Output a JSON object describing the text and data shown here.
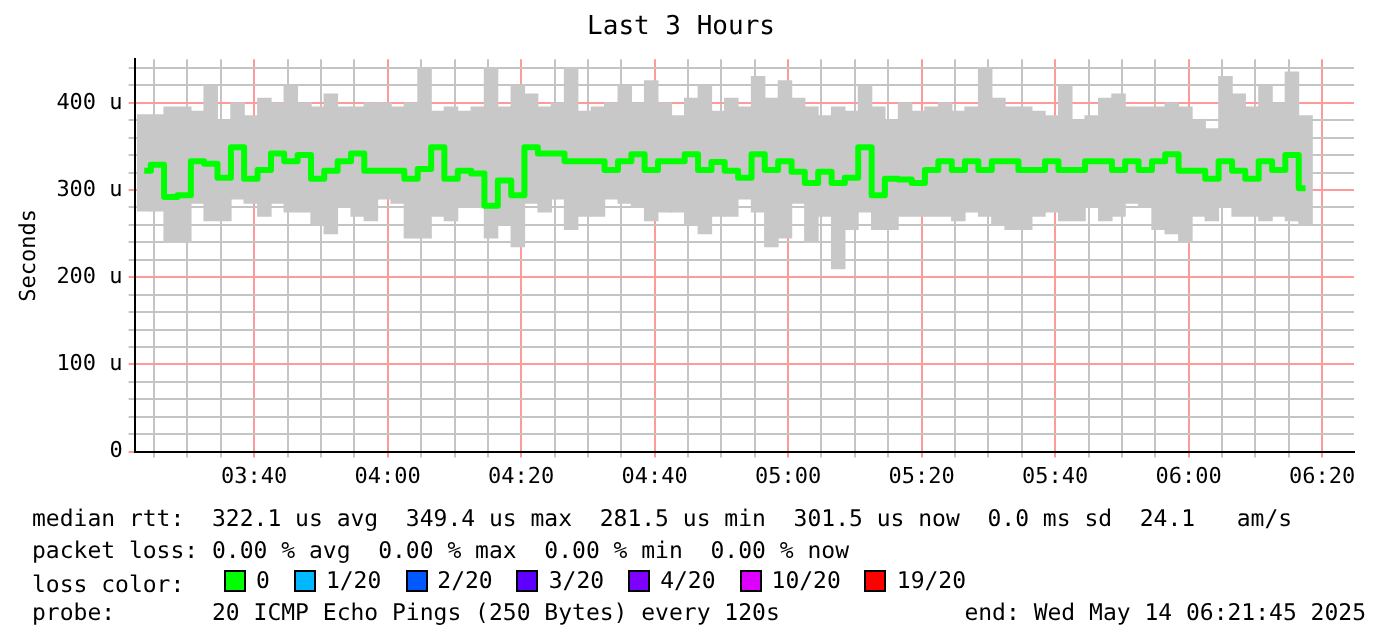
{
  "chart_data": {
    "type": "step",
    "title": "Last 3 Hours",
    "ylabel": "Seconds",
    "legend_title": "loss color:",
    "x": [
      3.392,
      3.425,
      3.458,
      3.492,
      3.525,
      3.558,
      3.592,
      3.625,
      3.658,
      3.692,
      3.725,
      3.758,
      3.792,
      3.825,
      3.858,
      3.892,
      3.925,
      3.958,
      3.992,
      4.025,
      4.058,
      4.092,
      4.125,
      4.158,
      4.192,
      4.225,
      4.258,
      4.292,
      4.325,
      4.358,
      4.392,
      4.425,
      4.458,
      4.492,
      4.525,
      4.558,
      4.592,
      4.625,
      4.658,
      4.692,
      4.725,
      4.758,
      4.792,
      4.825,
      4.858,
      4.892,
      4.925,
      4.958,
      4.992,
      5.025,
      5.058,
      5.092,
      5.125,
      5.158,
      5.192,
      5.225,
      5.258,
      5.292,
      5.325,
      5.358,
      5.392,
      5.425,
      5.458,
      5.492,
      5.525,
      5.558,
      5.592,
      5.625,
      5.658,
      5.692,
      5.725,
      5.758,
      5.792,
      5.825,
      5.858,
      5.892,
      5.925,
      5.958,
      5.992,
      6.025,
      6.058,
      6.092,
      6.125,
      6.158,
      6.192,
      6.225,
      6.258,
      6.292
    ],
    "series": [
      {
        "type": "bar",
        "color": "#c8c8c8",
        "base": [
          276,
          276,
          240,
          240,
          285,
          265,
          265,
          290,
          285,
          270,
          285,
          275,
          275,
          260,
          250,
          280,
          270,
          265,
          290,
          285,
          245,
          245,
          270,
          265,
          280,
          280,
          245,
          260,
          235,
          285,
          275,
          290,
          255,
          270,
          270,
          290,
          285,
          280,
          265,
          275,
          275,
          260,
          250,
          270,
          270,
          290,
          275,
          235,
          245,
          285,
          240,
          270,
          210,
          255,
          275,
          255,
          255,
          270,
          270,
          270,
          270,
          265,
          275,
          270,
          260,
          255,
          255,
          270,
          275,
          265,
          265,
          280,
          265,
          270,
          285,
          280,
          255,
          250,
          240,
          270,
          265,
          280,
          270,
          270,
          265,
          270,
          265,
          260
        ],
        "values": [
          110,
          110,
          155,
          155,
          105,
          155,
          115,
          110,
          100,
          135,
          115,
          145,
          125,
          135,
          160,
          115,
          125,
          135,
          110,
          110,
          155,
          195,
          120,
          130,
          110,
          115,
          195,
          135,
          185,
          125,
          120,
          110,
          185,
          120,
          125,
          110,
          135,
          120,
          160,
          125,
          110,
          145,
          170,
          120,
          135,
          105,
          155,
          170,
          180,
          120,
          155,
          115,
          185,
          135,
          145,
          140,
          125,
          130,
          120,
          125,
          130,
          125,
          120,
          170,
          145,
          140,
          140,
          120,
          110,
          155,
          115,
          105,
          140,
          140,
          110,
          115,
          140,
          150,
          155,
          110,
          105,
          150,
          140,
          125,
          155,
          130,
          170,
          125
        ]
      },
      {
        "name": "0",
        "color": "#00ff00",
        "values": [
          322,
          329,
          292,
          294,
          333,
          330,
          314,
          349,
          313,
          323,
          342,
          333,
          340,
          313,
          322,
          333,
          342,
          322,
          322,
          322,
          313,
          324,
          349,
          313,
          322,
          319,
          282,
          311,
          294,
          349,
          342,
          342,
          333,
          333,
          333,
          323,
          333,
          341,
          323,
          333,
          333,
          341,
          323,
          332,
          322,
          314,
          341,
          323,
          333,
          321,
          308,
          321,
          308,
          314,
          349,
          294,
          313,
          312,
          308,
          323,
          333,
          323,
          333,
          323,
          333,
          333,
          323,
          323,
          333,
          323,
          323,
          333,
          333,
          323,
          333,
          323,
          333,
          341,
          322,
          322,
          313,
          333,
          322,
          313,
          333,
          323,
          340,
          302
        ]
      },
      {
        "name": "1/20",
        "color": "#00b8ff",
        "values": [
          null,
          null,
          null,
          null,
          null,
          null,
          null,
          null,
          null,
          null,
          null,
          null,
          null,
          null,
          null,
          null,
          null,
          null,
          null,
          null,
          null,
          null,
          null,
          null,
          null,
          null,
          null,
          null,
          null,
          null,
          null,
          null,
          null,
          null,
          null,
          null,
          null,
          null,
          null,
          null,
          null,
          null,
          null,
          null,
          null,
          null,
          null,
          null,
          null,
          null,
          null,
          null,
          null,
          null,
          null,
          null,
          null,
          null,
          null,
          null,
          null,
          null,
          null,
          null,
          null,
          null,
          null,
          null,
          null,
          null,
          null,
          null,
          null,
          null,
          null,
          null,
          null,
          null,
          null,
          null,
          null,
          null,
          null,
          null,
          null,
          null,
          null,
          null
        ]
      },
      {
        "name": "2/20",
        "color": "#0059ff",
        "values": [
          null,
          null,
          null,
          null,
          null,
          null,
          null,
          null,
          null,
          null,
          null,
          null,
          null,
          null,
          null,
          null,
          null,
          null,
          null,
          null,
          null,
          null,
          null,
          null,
          null,
          null,
          null,
          null,
          null,
          null,
          null,
          null,
          null,
          null,
          null,
          null,
          null,
          null,
          null,
          null,
          null,
          null,
          null,
          null,
          null,
          null,
          null,
          null,
          null,
          null,
          null,
          null,
          null,
          null,
          null,
          null,
          null,
          null,
          null,
          null,
          null,
          null,
          null,
          null,
          null,
          null,
          null,
          null,
          null,
          null,
          null,
          null,
          null,
          null,
          null,
          null,
          null,
          null,
          null,
          null,
          null,
          null,
          null,
          null,
          null,
          null,
          null,
          null
        ]
      },
      {
        "name": "3/20",
        "color": "#5e00ff",
        "values": [
          null,
          null,
          null,
          null,
          null,
          null,
          null,
          null,
          null,
          null,
          null,
          null,
          null,
          null,
          null,
          null,
          null,
          null,
          null,
          null,
          null,
          null,
          null,
          null,
          null,
          null,
          null,
          null,
          null,
          null,
          null,
          null,
          null,
          null,
          null,
          null,
          null,
          null,
          null,
          null,
          null,
          null,
          null,
          null,
          null,
          null,
          null,
          null,
          null,
          null,
          null,
          null,
          null,
          null,
          null,
          null,
          null,
          null,
          null,
          null,
          null,
          null,
          null,
          null,
          null,
          null,
          null,
          null,
          null,
          null,
          null,
          null,
          null,
          null,
          null,
          null,
          null,
          null,
          null,
          null,
          null,
          null,
          null,
          null,
          null,
          null,
          null,
          null
        ]
      },
      {
        "name": "4/20",
        "color": "#7e00ff",
        "values": [
          null,
          null,
          null,
          null,
          null,
          null,
          null,
          null,
          null,
          null,
          null,
          null,
          null,
          null,
          null,
          null,
          null,
          null,
          null,
          null,
          null,
          null,
          null,
          null,
          null,
          null,
          null,
          null,
          null,
          null,
          null,
          null,
          null,
          null,
          null,
          null,
          null,
          null,
          null,
          null,
          null,
          null,
          null,
          null,
          null,
          null,
          null,
          null,
          null,
          null,
          null,
          null,
          null,
          null,
          null,
          null,
          null,
          null,
          null,
          null,
          null,
          null,
          null,
          null,
          null,
          null,
          null,
          null,
          null,
          null,
          null,
          null,
          null,
          null,
          null,
          null,
          null,
          null,
          null,
          null,
          null,
          null,
          null,
          null,
          null,
          null,
          null,
          null
        ]
      },
      {
        "name": "10/20",
        "color": "#dd00ff",
        "values": [
          null,
          null,
          null,
          null,
          null,
          null,
          null,
          null,
          null,
          null,
          null,
          null,
          null,
          null,
          null,
          null,
          null,
          null,
          null,
          null,
          null,
          null,
          null,
          null,
          null,
          null,
          null,
          null,
          null,
          null,
          null,
          null,
          null,
          null,
          null,
          null,
          null,
          null,
          null,
          null,
          null,
          null,
          null,
          null,
          null,
          null,
          null,
          null,
          null,
          null,
          null,
          null,
          null,
          null,
          null,
          null,
          null,
          null,
          null,
          null,
          null,
          null,
          null,
          null,
          null,
          null,
          null,
          null,
          null,
          null,
          null,
          null,
          null,
          null,
          null,
          null,
          null,
          null,
          null,
          null,
          null,
          null,
          null,
          null,
          null,
          null,
          null,
          null
        ]
      },
      {
        "name": "19/20",
        "color": "#ff0000",
        "values": [
          null,
          null,
          null,
          null,
          null,
          null,
          null,
          null,
          null,
          null,
          null,
          null,
          null,
          null,
          null,
          null,
          null,
          null,
          null,
          null,
          null,
          null,
          null,
          null,
          null,
          null,
          null,
          null,
          null,
          null,
          null,
          null,
          null,
          null,
          null,
          null,
          null,
          null,
          null,
          null,
          null,
          null,
          null,
          null,
          null,
          null,
          null,
          null,
          null,
          null,
          null,
          null,
          null,
          null,
          null,
          null,
          null,
          null,
          null,
          null,
          null,
          null,
          null,
          null,
          null,
          null,
          null,
          null,
          null,
          null,
          null,
          null,
          null,
          null,
          null,
          null,
          null,
          null,
          null,
          null,
          null,
          null,
          null,
          null,
          null,
          null,
          null,
          null
        ]
      }
    ],
    "xlim": [
      3.368,
      6.413
    ],
    "xticks": [
      {
        "value": 3.417,
        "label": null
      },
      {
        "value": 3.5,
        "label": null
      },
      {
        "value": 3.583,
        "label": null
      },
      {
        "value": 3.6667,
        "label": "03:40"
      },
      {
        "value": 3.75,
        "label": null
      },
      {
        "value": 3.833,
        "label": null
      },
      {
        "value": 3.917,
        "label": null
      },
      {
        "value": 4.0,
        "label": "04:00"
      },
      {
        "value": 4.083,
        "label": null
      },
      {
        "value": 4.167,
        "label": null
      },
      {
        "value": 4.25,
        "label": null
      },
      {
        "value": 4.3333,
        "label": "04:20"
      },
      {
        "value": 4.417,
        "label": null
      },
      {
        "value": 4.5,
        "label": null
      },
      {
        "value": 4.583,
        "label": null
      },
      {
        "value": 4.6667,
        "label": "04:40"
      },
      {
        "value": 4.75,
        "label": null
      },
      {
        "value": 4.833,
        "label": null
      },
      {
        "value": 4.917,
        "label": null
      },
      {
        "value": 5.0,
        "label": "05:00"
      },
      {
        "value": 5.083,
        "label": null
      },
      {
        "value": 5.167,
        "label": null
      },
      {
        "value": 5.25,
        "label": null
      },
      {
        "value": 5.3333,
        "label": "05:20"
      },
      {
        "value": 5.417,
        "label": null
      },
      {
        "value": 5.5,
        "label": null
      },
      {
        "value": 5.583,
        "label": null
      },
      {
        "value": 5.6667,
        "label": "05:40"
      },
      {
        "value": 5.75,
        "label": null
      },
      {
        "value": 5.833,
        "label": null
      },
      {
        "value": 5.917,
        "label": null
      },
      {
        "value": 6.0,
        "label": "06:00"
      },
      {
        "value": 6.083,
        "label": null
      },
      {
        "value": 6.167,
        "label": null
      },
      {
        "value": 6.25,
        "label": null
      },
      {
        "value": 6.3333,
        "label": "06:20"
      }
    ],
    "ylim": [
      0,
      450
    ],
    "yticks": [
      0,
      {
        "value": 20,
        "label": null
      },
      {
        "value": 40,
        "label": null
      },
      {
        "value": 60,
        "label": null
      },
      {
        "value": 80,
        "label": null
      },
      {
        "value": 100,
        "label": "100 u"
      },
      {
        "value": 120,
        "label": null
      },
      {
        "value": 140,
        "label": null
      },
      {
        "value": 160,
        "label": null
      },
      {
        "value": 180,
        "label": null
      },
      {
        "value": 200,
        "label": "200 u"
      },
      {
        "value": 220,
        "label": null
      },
      {
        "value": 240,
        "label": null
      },
      {
        "value": 260,
        "label": null
      },
      {
        "value": 280,
        "label": null
      },
      {
        "value": 300,
        "label": "300 u"
      },
      {
        "value": 320,
        "label": null
      },
      {
        "value": 340,
        "label": null
      },
      {
        "value": 360,
        "label": null
      },
      {
        "value": 380,
        "label": null
      },
      {
        "value": 400,
        "label": "400 u"
      },
      {
        "value": 420,
        "label": null
      },
      {
        "value": 440,
        "label": null
      }
    ],
    "grid": true,
    "legend": "bottom",
    "marker": "none",
    "line_style": "solid",
    "annotations": [
      "median rtt:  322.1 us avg  349.4 us max  281.5 us min  301.5 us now  0.0 ms sd  24.1   am/s",
      "packet loss: 0.00 % avg  0.00 % max  0.00 % min  0.00 % now",
      "probe:       20 ICMP Echo Pings (250 Bytes) every 120s",
      "end: Wed May 14 06:21:45 2025"
    ]
  }
}
